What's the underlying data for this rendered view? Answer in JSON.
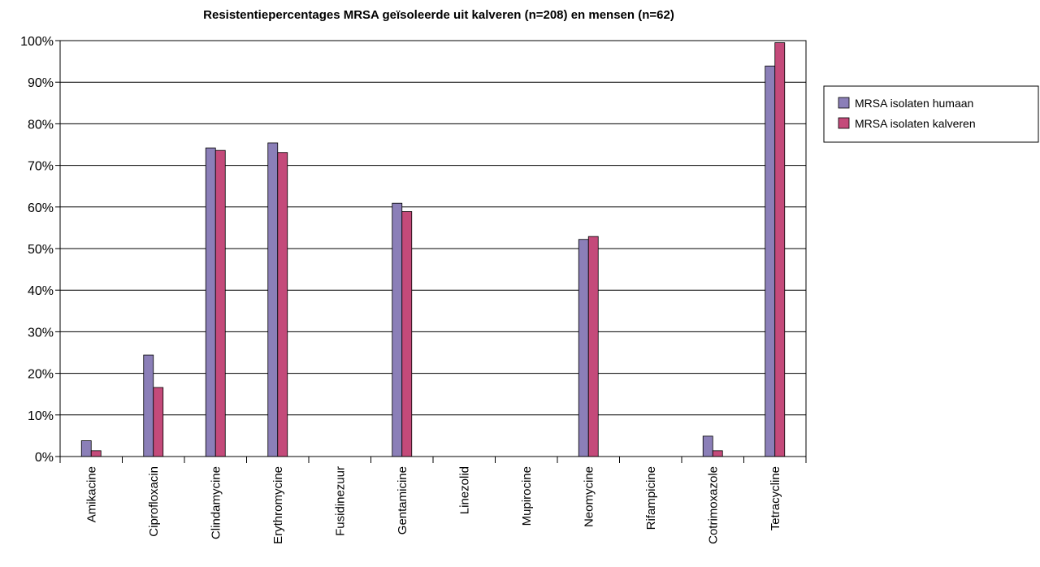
{
  "chart_data": {
    "type": "bar",
    "title": "Resistentiepercentages MRSA geïsoleerde uit kalveren (n=208) en mensen (n=62)",
    "xlabel": "",
    "ylabel": "",
    "ylim": [
      0,
      100
    ],
    "ytick_labels": [
      "0%",
      "10%",
      "20%",
      "30%",
      "40%",
      "50%",
      "60%",
      "70%",
      "80%",
      "90%",
      "100%"
    ],
    "ytick_values": [
      0,
      10,
      20,
      30,
      40,
      50,
      60,
      70,
      80,
      90,
      100
    ],
    "grid": "horizontal",
    "legend_position": "right",
    "categories": [
      "Amikacine",
      "Ciprofloxacin",
      "Clindamycine",
      "Erythromycine",
      "Fusidinezuur",
      "Gentamicine",
      "Linezolid",
      "Mupirocine",
      "Neomycine",
      "Rifampicine",
      "Cotrimoxazole",
      "Tetracycline"
    ],
    "series": [
      {
        "name": "MRSA isolaten humaan",
        "color": "#8B7FB8",
        "values": [
          3.8,
          24.4,
          74.2,
          75.4,
          0,
          60.9,
          0,
          0,
          52.2,
          0,
          4.9,
          93.9
        ]
      },
      {
        "name": "MRSA isolaten kalveren",
        "color": "#C44A7A",
        "values": [
          1.4,
          16.6,
          73.6,
          73.1,
          0,
          58.9,
          0,
          0,
          52.9,
          0,
          1.4,
          99.5
        ]
      }
    ]
  }
}
